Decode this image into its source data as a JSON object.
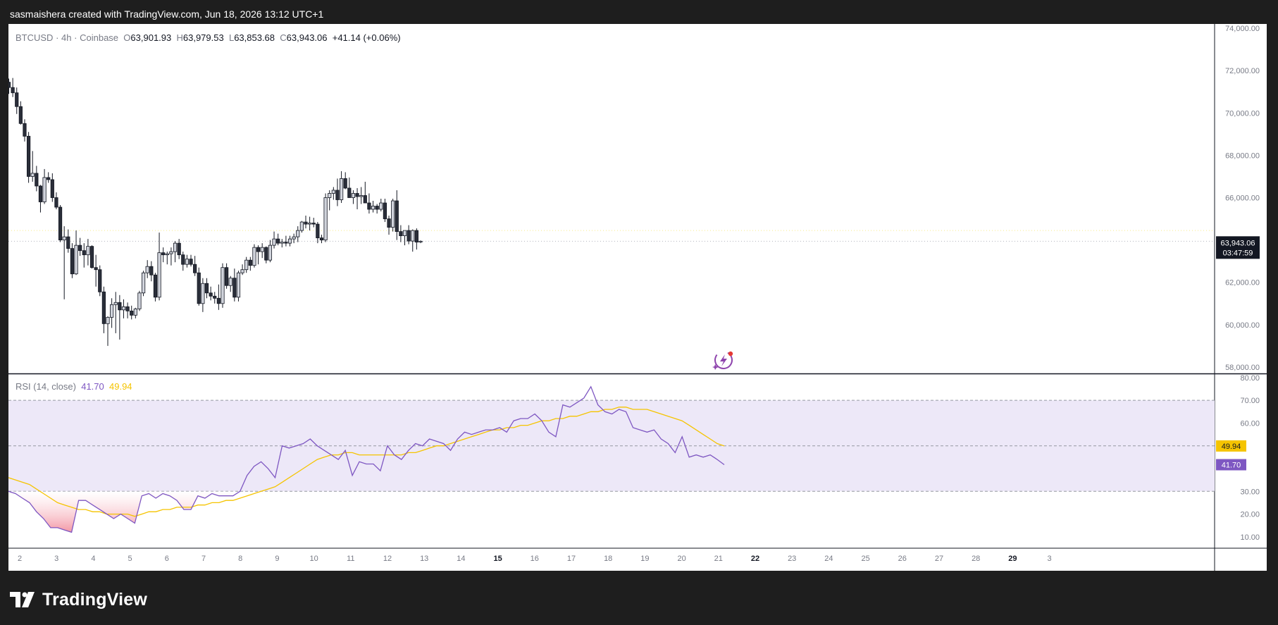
{
  "header": {
    "attribution": "sasmaishera created with TradingView.com, Jun 18, 2026 13:12 UTC+1"
  },
  "legend": {
    "symbol": "BTCUSD",
    "interval": "4h",
    "exchange": "Coinbase",
    "o_label": "O",
    "o": "63,901.93",
    "h_label": "H",
    "h": "63,979.53",
    "l_label": "L",
    "l": "63,853.68",
    "c_label": "C",
    "c": "63,943.06",
    "change": "+41.14 (+0.06%)"
  },
  "price_tag": {
    "price": "63,943.06",
    "countdown": "03:47:59"
  },
  "rsi_legend": {
    "name": "RSI (14, close)",
    "rsi": "41.70",
    "ma": "49.94"
  },
  "rsi_tags": {
    "rsi": "41.70",
    "ma": "49.94"
  },
  "footer": {
    "brand": "TradingView"
  },
  "colors": {
    "up_body": "#d1d4dc",
    "down_body": "#2a2e39",
    "wick": "#131722",
    "rsi_line": "#7e57c2",
    "rsi_ma": "#f5c400",
    "rsi_band": "#ede8f8",
    "oversold_fill": "#f28b9b",
    "attr_bg": "#1e1e1e"
  },
  "icons": {
    "brand_logo": "tradingview-logo-icon",
    "spark": "lightning-sparkle-icon"
  },
  "chart_data": [
    {
      "type": "candlestick",
      "title": "BTCUSD · 4h · Coinbase",
      "y_axis_ticks": [
        "74,000.00",
        "72,000.00",
        "70,000.00",
        "68,000.00",
        "66,000.00",
        "64,000.00",
        "62,000.00",
        "60,000.00",
        "58,000.00"
      ],
      "y_tick_values": [
        74000,
        72000,
        70000,
        68000,
        66000,
        64000,
        62000,
        60000,
        58000
      ],
      "x_axis_ticks": [
        "2",
        "3",
        "4",
        "5",
        "6",
        "7",
        "8",
        "9",
        "10",
        "11",
        "12",
        "13",
        "14",
        "15",
        "16",
        "17",
        "18",
        "19",
        "20",
        "21",
        "22",
        "23",
        "24",
        "25",
        "26",
        "27",
        "28",
        "29",
        "3"
      ],
      "bold_x_ticks": [
        "15",
        "22",
        "29"
      ],
      "last_price": 63943.06,
      "candles": [
        [
          71450,
          71620,
          70900,
          71200
        ],
        [
          71200,
          71650,
          70750,
          70950
        ],
        [
          70950,
          71200,
          69950,
          70300
        ],
        [
          70300,
          70550,
          69450,
          69500
        ],
        [
          69500,
          69700,
          68650,
          68900
        ],
        [
          68900,
          69100,
          66700,
          67000
        ],
        [
          67000,
          68200,
          66750,
          67150
        ],
        [
          67150,
          67500,
          66300,
          66550
        ],
        [
          66550,
          66600,
          65300,
          65800
        ],
        [
          65800,
          67350,
          65700,
          66950
        ],
        [
          66950,
          67200,
          66700,
          66850
        ],
        [
          66850,
          67150,
          65800,
          66000
        ],
        [
          66000,
          66250,
          65450,
          65550
        ],
        [
          65550,
          65650,
          63900,
          64000
        ],
        [
          64000,
          64650,
          61200,
          64150
        ],
        [
          64150,
          64500,
          63400,
          63600
        ],
        [
          63600,
          63850,
          62200,
          62400
        ],
        [
          62400,
          64450,
          62350,
          63750
        ],
        [
          63750,
          64100,
          63250,
          63500
        ],
        [
          63500,
          63850,
          62700,
          63300
        ],
        [
          63300,
          64050,
          62800,
          63700
        ],
        [
          63700,
          63750,
          62650,
          62700
        ],
        [
          62700,
          63300,
          61800,
          62600
        ],
        [
          62600,
          62800,
          61350,
          61550
        ],
        [
          61550,
          61800,
          59600,
          60050
        ],
        [
          60050,
          60400,
          59000,
          60350
        ],
        [
          60350,
          61250,
          59850,
          60950
        ],
        [
          60950,
          61550,
          59600,
          61050
        ],
        [
          61050,
          61400,
          59300,
          60700
        ],
        [
          60700,
          61200,
          60300,
          60850
        ],
        [
          60850,
          61050,
          60300,
          60650
        ],
        [
          60650,
          60900,
          60250,
          60450
        ],
        [
          60450,
          60800,
          60300,
          60750
        ],
        [
          60750,
          61600,
          60650,
          61500
        ],
        [
          61500,
          62550,
          61350,
          62450
        ],
        [
          62450,
          63050,
          62200,
          62750
        ],
        [
          62750,
          63000,
          62050,
          62350
        ],
        [
          62350,
          62450,
          61100,
          61300
        ],
        [
          61300,
          64350,
          61150,
          63400
        ],
        [
          63400,
          63650,
          62950,
          63300
        ],
        [
          63300,
          63450,
          62850,
          63350
        ],
        [
          63350,
          63650,
          62800,
          63450
        ],
        [
          63450,
          63950,
          62950,
          63850
        ],
        [
          63850,
          64050,
          63100,
          63300
        ],
        [
          63300,
          63450,
          62550,
          62850
        ],
        [
          62850,
          63300,
          62700,
          63100
        ],
        [
          63100,
          63300,
          62750,
          62850
        ],
        [
          62850,
          63250,
          62300,
          62450
        ],
        [
          62450,
          62700,
          60900,
          61000
        ],
        [
          61000,
          62200,
          60600,
          61950
        ],
        [
          61950,
          62200,
          61250,
          61500
        ],
        [
          61500,
          61800,
          61150,
          61350
        ],
        [
          61350,
          61550,
          61000,
          61250
        ],
        [
          61250,
          61900,
          60700,
          61000
        ],
        [
          61000,
          62900,
          60800,
          62700
        ],
        [
          62700,
          62900,
          61700,
          61850
        ],
        [
          61850,
          62300,
          61550,
          62200
        ],
        [
          62200,
          62650,
          61100,
          61300
        ],
        [
          61300,
          62550,
          61100,
          62450
        ],
        [
          62450,
          62850,
          62350,
          62600
        ],
        [
          62600,
          63200,
          62450,
          63050
        ],
        [
          63050,
          63200,
          62550,
          62800
        ],
        [
          62800,
          63800,
          62700,
          63650
        ],
        [
          63650,
          63750,
          62850,
          63450
        ],
        [
          63450,
          63850,
          63150,
          63650
        ],
        [
          63650,
          63700,
          62900,
          63050
        ],
        [
          63050,
          64000,
          62950,
          63750
        ],
        [
          63750,
          64400,
          63600,
          64050
        ],
        [
          64050,
          64300,
          63750,
          63850
        ],
        [
          63850,
          64050,
          63650,
          63900
        ],
        [
          63900,
          64200,
          63700,
          63850
        ],
        [
          63850,
          64200,
          63700,
          64050
        ],
        [
          64050,
          64300,
          63850,
          64150
        ],
        [
          64150,
          64650,
          63900,
          64450
        ],
        [
          64450,
          64900,
          64350,
          64850
        ],
        [
          64850,
          65150,
          64550,
          64750
        ],
        [
          64750,
          65100,
          64450,
          64800
        ],
        [
          64800,
          65050,
          64600,
          64750
        ],
        [
          64750,
          64850,
          63850,
          64100
        ],
        [
          64100,
          64250,
          63850,
          64000
        ],
        [
          64000,
          66200,
          63900,
          66000
        ],
        [
          66000,
          66350,
          65400,
          66200
        ],
        [
          66200,
          66500,
          65900,
          66350
        ],
        [
          66350,
          66900,
          65600,
          65900
        ],
        [
          65900,
          67250,
          65750,
          66900
        ],
        [
          66900,
          67200,
          66400,
          66450
        ],
        [
          66450,
          66950,
          66000,
          66000
        ],
        [
          66000,
          66350,
          65700,
          66200
        ],
        [
          66200,
          66450,
          65450,
          66050
        ],
        [
          66050,
          66500,
          65700,
          66100
        ],
        [
          66100,
          66750,
          65850,
          65750
        ],
        [
          65750,
          66200,
          65250,
          65450
        ],
        [
          65450,
          65850,
          65300,
          65600
        ],
        [
          65600,
          65700,
          65250,
          65450
        ],
        [
          65450,
          65950,
          65350,
          65750
        ],
        [
          65750,
          65950,
          64850,
          65000
        ],
        [
          65000,
          65150,
          64250,
          64600
        ],
        [
          64600,
          65950,
          64400,
          65850
        ],
        [
          65850,
          66350,
          64000,
          64400
        ],
        [
          64400,
          64700,
          63900,
          64200
        ],
        [
          64200,
          64400,
          63750,
          64450
        ],
        [
          64450,
          64700,
          63800,
          63950
        ],
        [
          63950,
          64500,
          63450,
          64450
        ],
        [
          64450,
          64550,
          63550,
          63900
        ],
        [
          63900,
          63980,
          63850,
          63943
        ]
      ],
      "x_range_candles": [
        0,
        186
      ],
      "ylim": [
        57700,
        74200
      ]
    },
    {
      "type": "line",
      "title": "RSI (14, close)",
      "y_axis_ticks": [
        "80.00",
        "70.00",
        "60.00",
        "30.00",
        "20.00",
        "10.00"
      ],
      "y_tick_values": [
        80,
        70,
        60,
        30,
        20,
        10
      ],
      "bands": {
        "upper": 70,
        "middle": 50,
        "lower": 30
      },
      "series": [
        {
          "name": "RSI",
          "values": [
            30,
            29,
            27,
            25,
            21,
            18,
            14,
            14,
            13,
            12,
            26,
            26,
            24,
            22,
            20,
            18,
            20,
            18,
            16,
            28,
            29,
            27,
            29,
            28,
            26,
            22,
            22,
            28,
            27,
            29,
            28,
            28,
            28,
            30,
            37,
            41,
            43,
            40,
            36,
            50,
            49,
            50,
            51,
            53,
            50,
            48,
            46,
            44,
            48,
            37,
            43,
            42,
            42,
            39,
            50,
            46,
            44,
            48,
            51,
            50,
            53,
            52,
            51,
            48,
            53,
            56,
            55,
            56,
            57,
            57,
            58,
            56,
            61,
            62,
            62,
            64,
            61,
            56,
            54,
            68,
            67,
            69,
            71,
            76,
            68,
            65,
            64,
            66,
            65,
            58,
            57,
            56,
            57,
            53,
            51,
            47,
            54,
            45,
            46,
            45,
            46,
            44,
            41.7
          ]
        },
        {
          "name": "RSI-based MA",
          "values": [
            36,
            35,
            34,
            33,
            31,
            29,
            27,
            25,
            24,
            23,
            22,
            22,
            21,
            21,
            20,
            20,
            20,
            20,
            19,
            20,
            21,
            21,
            22,
            22,
            23,
            23,
            23,
            24,
            24,
            25,
            25,
            26,
            26,
            27,
            28,
            29,
            30,
            31,
            32,
            34,
            36,
            38,
            40,
            42,
            44,
            45,
            46,
            46,
            47,
            47,
            46,
            46,
            46,
            46,
            46,
            46,
            46,
            47,
            47,
            48,
            49,
            50,
            50,
            51,
            52,
            53,
            54,
            55,
            56,
            57,
            57,
            58,
            58,
            59,
            59,
            60,
            61,
            61,
            62,
            62,
            63,
            63,
            64,
            65,
            65,
            66,
            66,
            67,
            67,
            66,
            66,
            66,
            65,
            64,
            63,
            62,
            61,
            59,
            57,
            55,
            53,
            51,
            49.94
          ]
        }
      ],
      "ylim": [
        5,
        81.5
      ]
    }
  ]
}
